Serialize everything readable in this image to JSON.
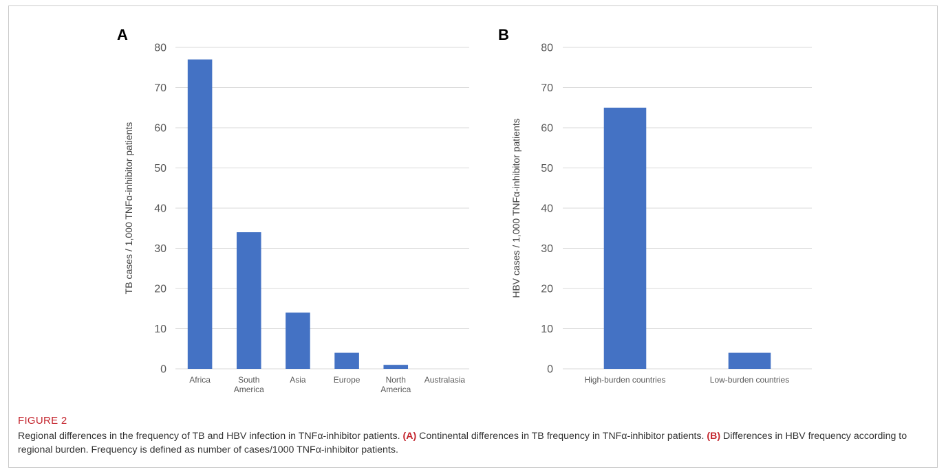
{
  "figure": {
    "label": "FIGURE 2",
    "caption": [
      {
        "text": "Regional differences in the frequency of TB and HBV infection in TNFα-inhibitor patients. ",
        "bold": false
      },
      {
        "text": "(A)",
        "bold": true
      },
      {
        "text": " Continental differences in TB frequency in TNFα-inhibitor patients. ",
        "bold": false
      },
      {
        "text": "(B)",
        "bold": true
      },
      {
        "text": " Differences in HBV frequency according to regional burden. Frequency is defined as number of cases/1000 TNFα-inhibitor patients.",
        "bold": false
      }
    ]
  },
  "colors": {
    "bar": "#4472c4",
    "grid": "#d9d9d9",
    "accent": "#c4262e"
  },
  "chart_data": [
    {
      "panel": "A",
      "type": "bar",
      "categories": [
        [
          "Africa"
        ],
        [
          "South",
          "America"
        ],
        [
          "Asia"
        ],
        [
          "Europe"
        ],
        [
          "North",
          "America"
        ],
        [
          "Australasia"
        ]
      ],
      "values": [
        77,
        34,
        14,
        4,
        1,
        0
      ],
      "ylabel": "TB cases / 1,000 TNFα-inhibitor patients",
      "xlabel": "",
      "ylim": [
        0,
        80
      ],
      "yticks": [
        0,
        10,
        20,
        30,
        40,
        50,
        60,
        70,
        80
      ],
      "grid": true
    },
    {
      "panel": "B",
      "type": "bar",
      "categories": [
        [
          "High-burden countries"
        ],
        [
          "Low-burden countries"
        ]
      ],
      "values": [
        65,
        4
      ],
      "ylabel": "HBV cases / 1,000 TNFα-inhibitor patients",
      "xlabel": "",
      "ylim": [
        0,
        80
      ],
      "yticks": [
        0,
        10,
        20,
        30,
        40,
        50,
        60,
        70,
        80
      ],
      "grid": true
    }
  ]
}
